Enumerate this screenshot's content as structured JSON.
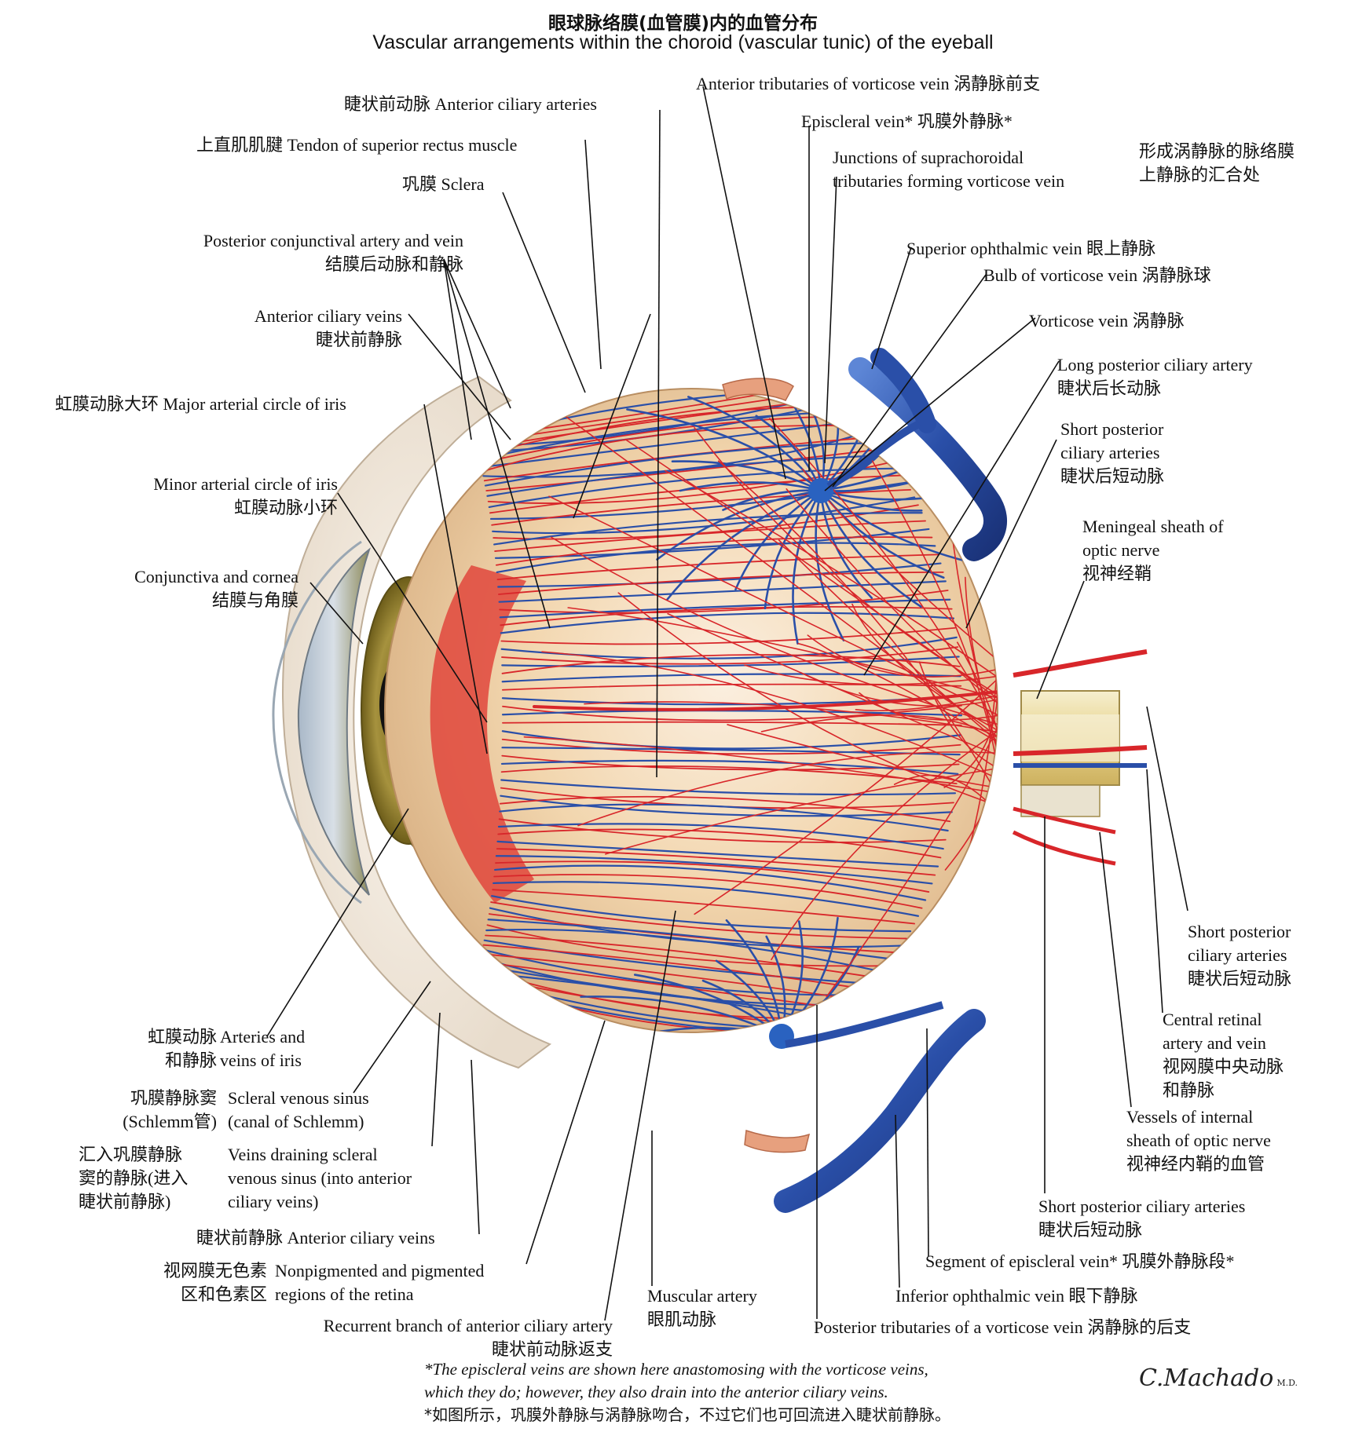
{
  "title": {
    "cn": "眼球脉络膜(血管膜)内的血管分布",
    "en": "Vascular arrangements within the choroid (vascular tunic) of the eyeball"
  },
  "labels": {
    "ant_ciliary_arteries": "睫状前动脉 Anterior ciliary arteries",
    "tendon_sup_rectus": "上直肌肌腱 Tendon of superior rectus muscle",
    "sclera": "巩膜 Sclera",
    "post_conj_en": "Posterior conjunctival artery and vein",
    "post_conj_cn": "结膜后动脉和静脉",
    "ant_ciliary_veins_top_en": "Anterior ciliary veins",
    "ant_ciliary_veins_top_cn": "睫状前静脉",
    "major_circle": "虹膜动脉大环 Major arterial circle of iris",
    "minor_circle_en": "Minor arterial circle of iris",
    "minor_circle_cn": "虹膜动脉小环",
    "conj_cornea_en": "Conjunctiva and cornea",
    "conj_cornea_cn": "结膜与角膜",
    "ant_trib_vorticose": "Anterior tributaries of vorticose vein 涡静脉前支",
    "episcleral_vein": "Episcleral vein* 巩膜外静脉*",
    "junctions_en1": "Junctions of suprachoroidal",
    "junctions_en2": "tributaries forming vorticose vein",
    "junctions_cn1": "形成涡静脉的脉络膜",
    "junctions_cn2": "上静脉的汇合处",
    "sup_ophth_vein": "Superior ophthalmic vein 眼上静脉",
    "bulb_vorticose": "Bulb of vorticose vein 涡静脉球",
    "vorticose_vein": "Vorticose vein 涡静脉",
    "long_post_ciliary_en": "Long posterior ciliary artery",
    "long_post_ciliary_cn": "睫状后长动脉",
    "short_post_1_en1": "Short posterior",
    "short_post_1_en2": "ciliary arteries",
    "short_post_1_cn": "睫状后短动脉",
    "meningeal_en1": "Meningeal sheath of",
    "meningeal_en2": "optic nerve",
    "meningeal_cn": "视神经鞘",
    "short_post_2_en1": "Short posterior",
    "short_post_2_en2": "ciliary arteries",
    "short_post_2_cn": "睫状后短动脉",
    "central_retinal_en1": "Central retinal",
    "central_retinal_en2": "artery and vein",
    "central_retinal_cn1": "视网膜中央动脉",
    "central_retinal_cn2": "和静脉",
    "internal_sheath_en1": "Vessels of internal",
    "internal_sheath_en2": "sheath of optic nerve",
    "internal_sheath_cn": "视神经内鞘的血管",
    "short_post_3_en": "Short posterior ciliary arteries",
    "short_post_3_cn": "睫状后短动脉",
    "segment_episcleral": "Segment of episcleral vein* 巩膜外静脉段*",
    "inf_ophth_vein": "Inferior ophthalmic vein 眼下静脉",
    "post_trib_vorticose": "Posterior tributaries of a vorticose vein 涡静脉的后支",
    "iris_vessels_cn1": "虹膜动脉",
    "iris_vessels_cn2": "和静脉",
    "iris_vessels_en1": "Arteries and",
    "iris_vessels_en2": "veins of iris",
    "schlemm_cn1": "巩膜静脉窦",
    "schlemm_cn2": "(Schlemm管)",
    "schlemm_en1": "Scleral venous sinus",
    "schlemm_en2": "(canal of Schlemm)",
    "draining_cn1": "汇入巩膜静脉",
    "draining_cn2": "窦的静脉(进入",
    "draining_cn3": "睫状前静脉)",
    "draining_en1": "Veins draining scleral",
    "draining_en2": "venous sinus (into anterior",
    "draining_en3": "ciliary veins)",
    "ant_ciliary_veins_bottom": "睫状前静脉 Anterior ciliary veins",
    "retina_cn1": "视网膜无色素",
    "retina_cn2": "区和色素区",
    "retina_en1": "Nonpigmented and pigmented",
    "retina_en2": "regions of the retina",
    "muscular_artery_en": "Muscular artery",
    "muscular_artery_cn": "眼肌动脉",
    "recurrent_en": "Recurrent branch of anterior ciliary artery",
    "recurrent_cn": "睫状前动脉返支"
  },
  "footnote": {
    "en1": "*The episcleral veins are shown here anastomosing with the vorticose veins,",
    "en2": "which they do; however, they also drain into the anterior ciliary veins.",
    "cn": "*如图所示，巩膜外静脉与涡静脉吻合，不过它们也可回流进入睫状前静脉。"
  },
  "signature": {
    "name": "C.Machado",
    "suffix": "M.D."
  },
  "colors": {
    "artery": "#d8262a",
    "vein": "#2a4fa8",
    "choroid": "#f0d2a8",
    "iris": "#8a7a2a",
    "leader": "#111111"
  }
}
